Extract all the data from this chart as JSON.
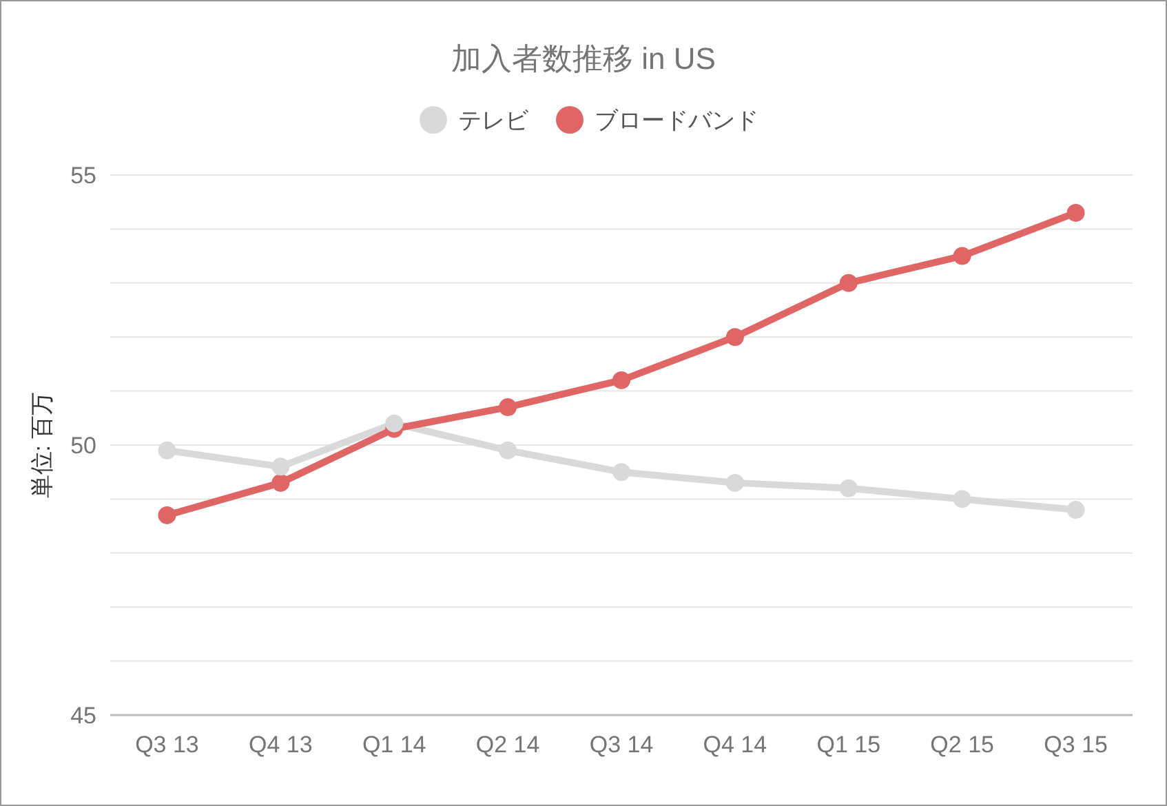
{
  "chart_data": {
    "type": "line",
    "title": "加入者数推移 in US",
    "ylabel": "単位: 百万",
    "categories": [
      "Q3 13",
      "Q4 13",
      "Q1 14",
      "Q2 14",
      "Q3 14",
      "Q4 14",
      "Q1 15",
      "Q2 15",
      "Q3 15"
    ],
    "series": [
      {
        "name": "テレビ",
        "color": "#d9d9d9",
        "values": [
          49.9,
          49.6,
          50.4,
          49.9,
          49.5,
          49.3,
          49.2,
          49.0,
          48.8
        ]
      },
      {
        "name": "ブロードバンド",
        "color": "#e06666",
        "values": [
          48.7,
          49.3,
          50.3,
          50.7,
          51.2,
          52.0,
          53.0,
          53.5,
          54.3
        ]
      }
    ],
    "ylim": [
      45,
      55
    ],
    "yticks": [
      45,
      {
        "value": 46,
        "label": null
      },
      {
        "value": 47,
        "label": null
      },
      {
        "value": 48,
        "label": null
      },
      {
        "value": 49,
        "label": null
      },
      50,
      {
        "value": 51,
        "label": null
      },
      {
        "value": 52,
        "label": null
      },
      {
        "value": 53,
        "label": null
      },
      {
        "value": 54,
        "label": null
      },
      55
    ],
    "grid": "y",
    "legend": "top",
    "marker": "circle",
    "line_style": "solid"
  }
}
